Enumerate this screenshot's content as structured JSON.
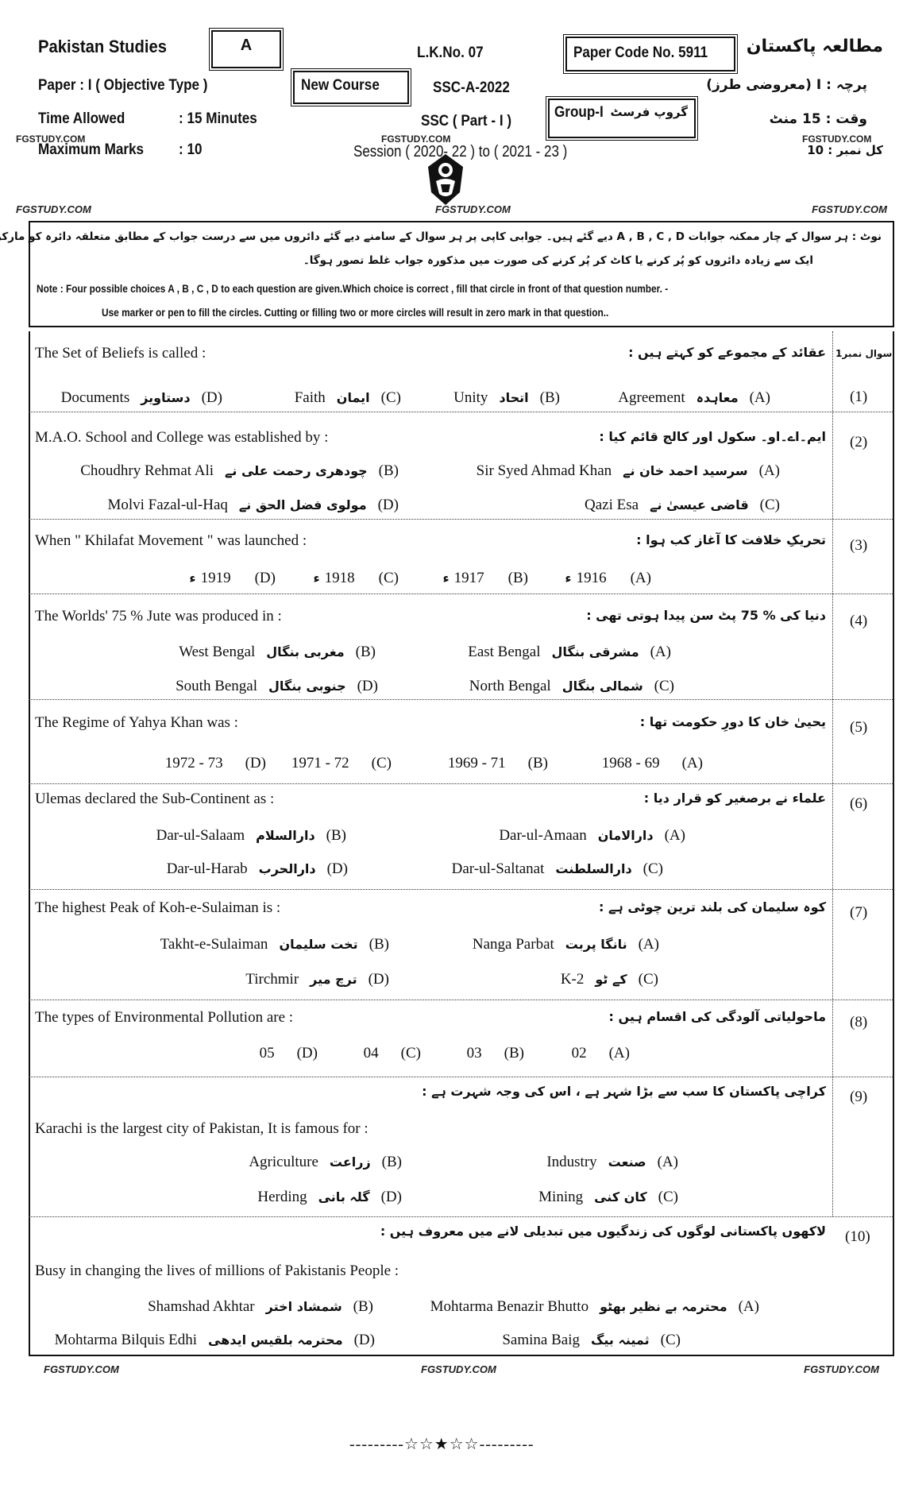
{
  "header": {
    "subject_en": "Pakistan Studies",
    "version": "A",
    "lk_no": "L.K.No. 07",
    "paper_code": "Paper Code No. 5911",
    "subject_ur": "مطالعہ پاکستان",
    "paper": "Paper  :  I     ( Objective Type )",
    "course": "New Course",
    "exam": "SSC-A-2022",
    "paper_ur": "پرچہ  :  I  (معروضی طرز)",
    "group": "Group-I",
    "group_ur": "گروپ فرسٹ",
    "time_label": "Time   Allowed",
    "time_value": ":    15  Minutes",
    "part": "SSC ( Part - I )",
    "time_ur": "وقت  :  15  منٹ",
    "marks_label": "Maximum  Marks",
    "marks_value": ":    10",
    "session": "Session  ( 2020- 22 ) to ( 2021 - 23 )",
    "marks_ur": "کل نمبر  :  10"
  },
  "watermark": "FGSTUDY.COM",
  "note": {
    "ur_line1": "نوٹ : ہر سوال کے چار ممکنہ جوابات A , B , C , D دیے گئے ہیں۔ جوابی کاپی پر ہر سوال کے سامنے دیے گئے دائروں میں سے درست جواب کے مطابق متعلقہ دائرہ کو مارکر یا پین سے بھر دیجئے۔",
    "ur_line2": "ایک سے زیادہ دائروں کو پُر کرنے یا کاٹ کر پُر کرنے کی صورت میں مذکورہ جواب غلط تصور ہوگا۔",
    "en_line1": "Note : Four possible choices A , B , C , D to each question are given.Which choice is correct , fill that circle in front of that question number. -",
    "en_line2": "Use marker or pen to fill the circles. Cutting or filling two or more circles will result in zero mark in that question.."
  },
  "q1_label_ur": "سوال نمبر1",
  "questions": [
    {
      "num": "(1)",
      "en": "The Set of Beliefs is called     :",
      "ur": "عقائد کے مجموعے کو کہتے ہیں   :",
      "options": [
        {
          "letter": "(A)",
          "en": "Agreement",
          "ur": "معاہدہ"
        },
        {
          "letter": "(B)",
          "en": "Unity",
          "ur": "اتحاد"
        },
        {
          "letter": "(C)",
          "en": "Faith",
          "ur": "ایمان"
        },
        {
          "letter": "(D)",
          "en": "Documents",
          "ur": "دستاویز"
        }
      ]
    },
    {
      "num": "(2)",
      "en": "M.A.O. School and College was established by     :",
      "ur": "ایم۔اے۔او۔ سکول اور کالج قائم کیا   :",
      "options": [
        {
          "letter": "(A)",
          "en": "Sir Syed Ahmad Khan",
          "ur": "سرسید احمد خان نے"
        },
        {
          "letter": "(B)",
          "en": "Choudhry Rehmat Ali",
          "ur": "چودھری رحمت علی نے"
        },
        {
          "letter": "(C)",
          "en": "Qazi Esa",
          "ur": "قاضی عیسیٰ نے"
        },
        {
          "letter": "(D)",
          "en": "Molvi Fazal-ul-Haq",
          "ur": "مولوی فضل الحق نے"
        }
      ]
    },
    {
      "num": "(3)",
      "en": "When \" Khilafat Movement \" was launched     :",
      "ur": "تحریکِ خلافت کا آغاز کب ہوا   :",
      "options": [
        {
          "letter": "(A)",
          "en": "1916",
          "ur": "ء"
        },
        {
          "letter": "(B)",
          "en": "1917",
          "ur": "ء"
        },
        {
          "letter": "(C)",
          "en": "1918",
          "ur": "ء"
        },
        {
          "letter": "(D)",
          "en": "1919",
          "ur": "ء"
        }
      ]
    },
    {
      "num": "(4)",
      "en": "The Worlds'  75 % Jute was produced in     :",
      "ur": "دنیا کی % 75 پٹ سن پیدا ہوتی تھی   :",
      "options": [
        {
          "letter": "(A)",
          "en": "East Bengal",
          "ur": "مشرقی بنگال"
        },
        {
          "letter": "(B)",
          "en": "West Bengal",
          "ur": "مغربی بنگال"
        },
        {
          "letter": "(C)",
          "en": "North  Bengal",
          "ur": "شمالی بنگال"
        },
        {
          "letter": "(D)",
          "en": "South Bengal",
          "ur": "جنوبی بنگال"
        }
      ]
    },
    {
      "num": "(5)",
      "en": "The Regime of Yahya Khan was     :",
      "ur": "یحییٰ خان کا دورِ حکومت تھا   :",
      "options": [
        {
          "letter": "(A)",
          "en": "1968 - 69",
          "ur": ""
        },
        {
          "letter": "(B)",
          "en": "1969 - 71",
          "ur": ""
        },
        {
          "letter": "(C)",
          "en": "1971 - 72",
          "ur": ""
        },
        {
          "letter": "(D)",
          "en": "1972 - 73",
          "ur": ""
        }
      ]
    },
    {
      "num": "(6)",
      "en": "Ulemas declared the Sub-Continent as     :",
      "ur": "علماء نے برصغیر کو قرار دیا   :",
      "options": [
        {
          "letter": "(A)",
          "en": "Dar-ul-Amaan",
          "ur": "دارالامان"
        },
        {
          "letter": "(B)",
          "en": "Dar-ul-Salaam",
          "ur": "دارالسلام"
        },
        {
          "letter": "(C)",
          "en": "Dar-ul-Saltanat",
          "ur": "دارالسلطنت"
        },
        {
          "letter": "(D)",
          "en": "Dar-ul-Harab",
          "ur": "دارالحرب"
        }
      ]
    },
    {
      "num": "(7)",
      "en": "The highest Peak of Koh-e-Sulaiman is     :",
      "ur": "کوہ سلیمان کی بلند ترین چوٹی ہے   :",
      "options": [
        {
          "letter": "(A)",
          "en": "Nanga  Parbat",
          "ur": "نانگا پربت"
        },
        {
          "letter": "(B)",
          "en": "Takht-e-Sulaiman",
          "ur": "تخت سلیمان"
        },
        {
          "letter": "(C)",
          "en": "K-2",
          "ur": "کے ٹو"
        },
        {
          "letter": "(D)",
          "en": "Tirchmir",
          "ur": "ترچ میر"
        }
      ]
    },
    {
      "num": "(8)",
      "en": "The types of Environmental Pollution are     :",
      "ur": "ماحولیاتی آلودگی کی اقسام ہیں   :",
      "options": [
        {
          "letter": "(A)",
          "en": "02",
          "ur": ""
        },
        {
          "letter": "(B)",
          "en": "03",
          "ur": ""
        },
        {
          "letter": "(C)",
          "en": "04",
          "ur": ""
        },
        {
          "letter": "(D)",
          "en": "05",
          "ur": ""
        }
      ]
    },
    {
      "num": "(9)",
      "en": "Karachi is the largest city of Pakistan, It is famous for     :",
      "ur": "کراچی پاکستان کا سب سے بڑا شہر ہے ، اس کی وجہ شہرت ہے   :",
      "options": [
        {
          "letter": "(A)",
          "en": "Industry",
          "ur": "صنعت"
        },
        {
          "letter": "(B)",
          "en": "Agriculture",
          "ur": "زراعت"
        },
        {
          "letter": "(C)",
          "en": "Mining",
          "ur": "کان کنی"
        },
        {
          "letter": "(D)",
          "en": "Herding",
          "ur": "گلہ بانی"
        }
      ]
    },
    {
      "num": "(10)",
      "en": "Busy in changing the lives of millions of Pakistanis People     :",
      "ur": "لاکھوں پاکستانی لوگوں کی زندگیوں میں تبدیلی لانے میں معروف ہیں   :",
      "options": [
        {
          "letter": "(A)",
          "en": "Mohtarma Benazir Bhutto",
          "ur": "محترمہ بے نظیر بھٹو"
        },
        {
          "letter": "(B)",
          "en": "Shamshad Akhtar",
          "ur": "شمشاد اختر"
        },
        {
          "letter": "(C)",
          "en": "Samina Baig",
          "ur": "ثمینہ بیگ"
        },
        {
          "letter": "(D)",
          "en": "Mohtarma Bilquis Edhi",
          "ur": "محترمہ بلقیس ایدھی"
        }
      ]
    }
  ],
  "footer": {
    "end_mark": "---------☆☆★☆☆---------"
  }
}
